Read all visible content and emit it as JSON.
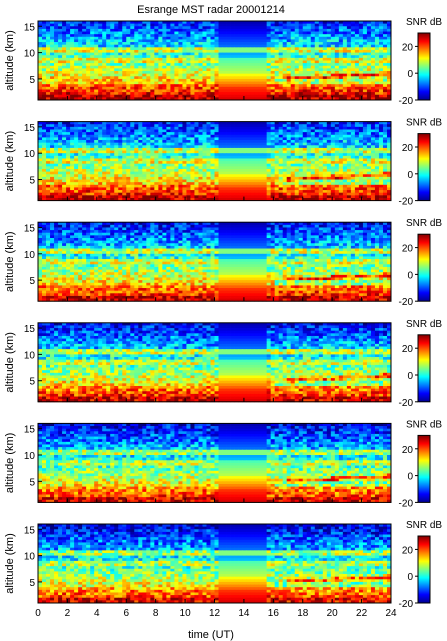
{
  "figure": {
    "title": "Esrange MST radar 20001214",
    "xlabel": "time (UT)",
    "ylabel": "altitude (km)",
    "colorbar_label": "SNR dB"
  },
  "chart_data": {
    "type": "heatmap",
    "title": "Esrange MST radar 20001214",
    "xlabel": "time (UT)",
    "ylabel": "altitude (km)",
    "xlim": [
      0,
      24
    ],
    "ylim": [
      1,
      16
    ],
    "xticks": [
      0,
      2,
      4,
      6,
      8,
      10,
      12,
      14,
      16,
      18,
      20,
      22,
      24
    ],
    "yticks": [
      5,
      10,
      15
    ],
    "colorbar": {
      "label": "SNR dB",
      "range": [
        -20,
        30
      ],
      "ticks": [
        -20,
        0,
        20
      ],
      "colormap": "jet"
    },
    "panel_count": 6,
    "data_gap_hours": [
      12.4,
      15.6
    ],
    "layers": [
      {
        "feature": "strong boundary-layer echo",
        "altitude_km": [
          1,
          4
        ],
        "snr_db": 25
      },
      {
        "feature": "tropopause layer",
        "altitude_km": [
          10,
          11
        ],
        "snr_db": 15
      },
      {
        "feature": "weaker layer",
        "altitude_km": [
          8,
          9
        ],
        "snr_db": 8
      },
      {
        "feature": "upper troposphere / lower stratosphere background",
        "altitude_km": [
          12,
          16
        ],
        "snr_db": -10
      }
    ]
  },
  "colors": {
    "axis": "#000000",
    "background": "#ffffff",
    "jet": [
      "#00008f",
      "#0000ff",
      "#0080ff",
      "#00ffff",
      "#80ff80",
      "#ffff00",
      "#ff8000",
      "#ff0000",
      "#800000"
    ]
  }
}
